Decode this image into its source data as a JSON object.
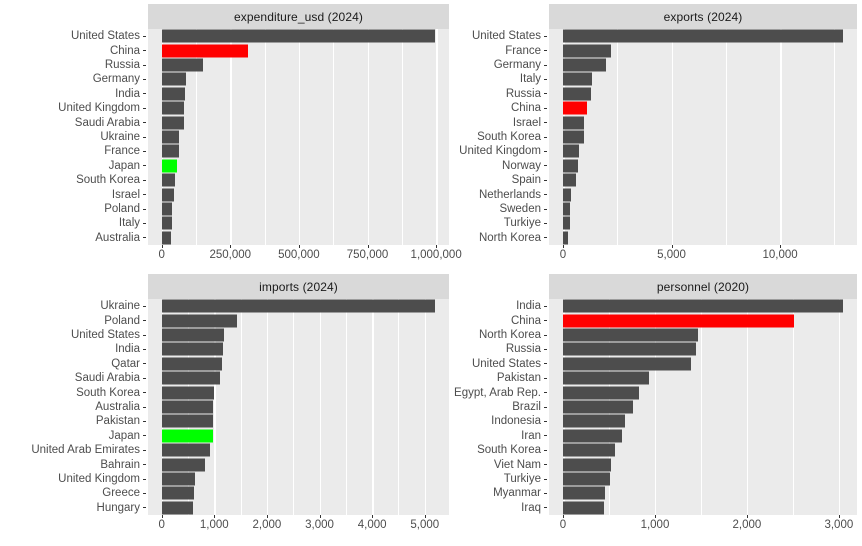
{
  "figure": {
    "background": "#FFFFFF",
    "panel_bg": "#EBEBEB",
    "strip_bg": "#D9D9D9",
    "strip_text_color": "#1A1A1A",
    "grid_color": "#FFFFFF",
    "bar_color": "#4D4D4D",
    "axis_text_color": "#4D4D4D",
    "tick_mark_color": "#333333",
    "highlights": {
      "China": "#FF0000",
      "Japan": "#00FF00"
    }
  },
  "chart_data": [
    {
      "id": "expenditure-usd",
      "type": "bar",
      "orientation": "horizontal",
      "title": "expenditure_usd (2024)",
      "categories": [
        "United States",
        "China",
        "Russia",
        "Germany",
        "India",
        "United Kingdom",
        "Saudi Arabia",
        "Ukraine",
        "France",
        "Japan",
        "South Korea",
        "Israel",
        "Poland",
        "Italy",
        "Australia"
      ],
      "values": [
        997000,
        314000,
        149000,
        88500,
        86100,
        81800,
        80300,
        64800,
        64700,
        55300,
        47600,
        46500,
        38000,
        38000,
        33800
      ],
      "axis_max": 997000,
      "xlim": [
        -49850,
        1096700
      ],
      "grid": true,
      "major_ticks": [
        {
          "value": 0,
          "label": "0"
        },
        {
          "value": 250000,
          "label": "250,000"
        },
        {
          "value": 500000,
          "label": "500,000"
        },
        {
          "value": 750000,
          "label": "750,000"
        },
        {
          "value": 1000000,
          "label": "1,000,000"
        }
      ],
      "minor_ticks": [
        125000,
        375000,
        625000,
        875000
      ]
    },
    {
      "id": "exports",
      "type": "bar",
      "orientation": "horizontal",
      "title": "exports (2024)",
      "categories": [
        "United States",
        "France",
        "Germany",
        "Italy",
        "Russia",
        "China",
        "Israel",
        "South Korea",
        "United Kingdom",
        "Norway",
        "Spain",
        "Netherlands",
        "Sweden",
        "Turkiye",
        "North Korea"
      ],
      "values": [
        12900,
        2200,
        1990,
        1330,
        1280,
        1090,
        980,
        950,
        745,
        710,
        590,
        365,
        345,
        310,
        220
      ],
      "axis_max": 12900,
      "xlim": [
        -645,
        14190
      ],
      "grid": true,
      "major_ticks": [
        {
          "value": 0,
          "label": "0"
        },
        {
          "value": 5000,
          "label": "5,000"
        },
        {
          "value": 10000,
          "label": "10,000"
        }
      ],
      "minor_ticks": [
        2500,
        7500,
        12500
      ]
    },
    {
      "id": "imports",
      "type": "bar",
      "orientation": "horizontal",
      "title": "imports (2024)",
      "categories": [
        "Ukraine",
        "Poland",
        "United States",
        "India",
        "Qatar",
        "Saudi Arabia",
        "South Korea",
        "Australia",
        "Pakistan",
        "Japan",
        "United Arab Emirates",
        "Bahrain",
        "United Kingdom",
        "Greece",
        "Hungary"
      ],
      "values": [
        5200,
        1430,
        1190,
        1170,
        1150,
        1110,
        1000,
        980,
        980,
        970,
        920,
        830,
        640,
        610,
        590
      ],
      "axis_max": 5200,
      "xlim": [
        -260,
        5720
      ],
      "grid": true,
      "major_ticks": [
        {
          "value": 0,
          "label": "0"
        },
        {
          "value": 1000,
          "label": "1,000"
        },
        {
          "value": 2000,
          "label": "2,000"
        },
        {
          "value": 3000,
          "label": "3,000"
        },
        {
          "value": 4000,
          "label": "4,000"
        },
        {
          "value": 5000,
          "label": "5,000"
        }
      ],
      "minor_ticks": [
        500,
        1500,
        2500,
        3500,
        4500
      ]
    },
    {
      "id": "personnel",
      "type": "bar",
      "orientation": "horizontal",
      "title": "personnel (2020)",
      "categories": [
        "India",
        "China",
        "North Korea",
        "Russia",
        "United States",
        "Pakistan",
        "Egypt, Arab Rep.",
        "Brazil",
        "Indonesia",
        "Iran",
        "South Korea",
        "Viet Nam",
        "Turkiye",
        "Myanmar",
        "Iraq"
      ],
      "values": [
        3045,
        2510,
        1470,
        1450,
        1390,
        930,
        830,
        760,
        675,
        640,
        570,
        520,
        510,
        455,
        450
      ],
      "axis_max": 3045,
      "xlim": [
        -152,
        3350
      ],
      "grid": true,
      "major_ticks": [
        {
          "value": 0,
          "label": "0"
        },
        {
          "value": 1000,
          "label": "1,000"
        },
        {
          "value": 2000,
          "label": "2,000"
        },
        {
          "value": 3000,
          "label": "3,000"
        }
      ],
      "minor_ticks": [
        500,
        1500,
        2500
      ]
    }
  ]
}
